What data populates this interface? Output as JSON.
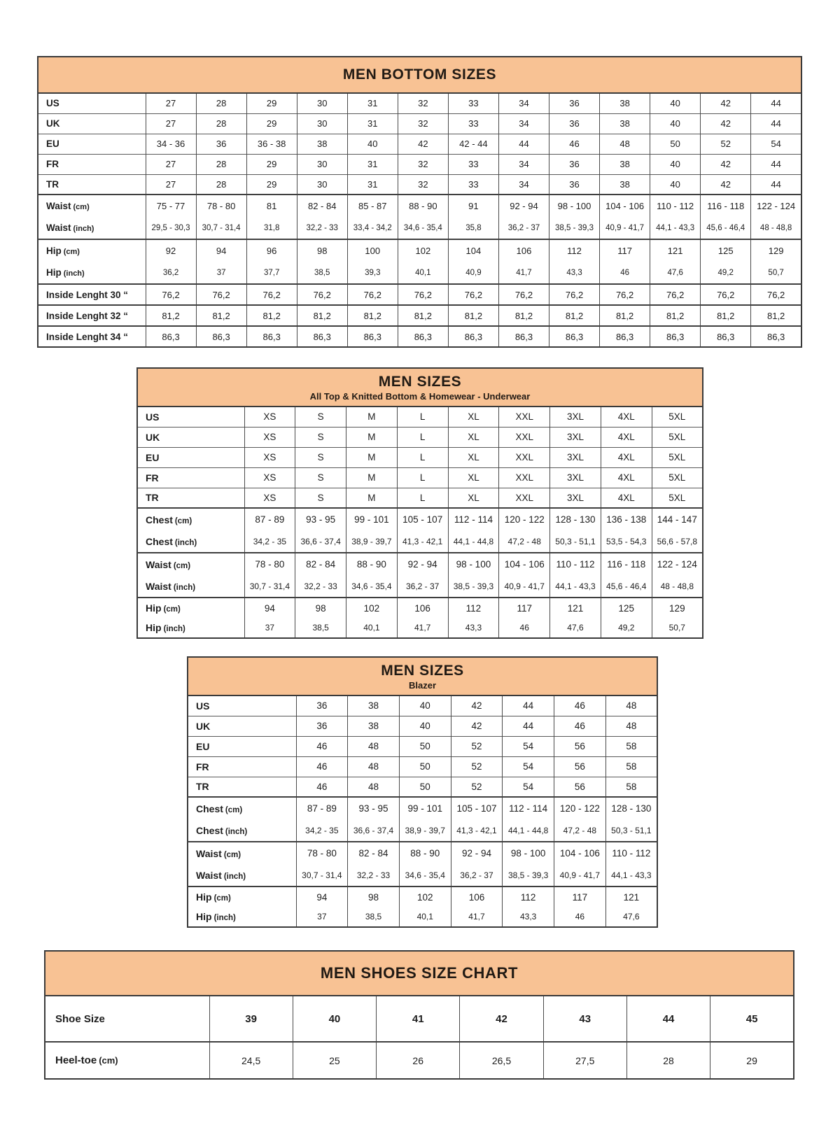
{
  "colors": {
    "table_header_bg": "#F8C294",
    "border_dark": "#3a3a3a",
    "border_thin": "#585858",
    "text": "#1d1d1d"
  },
  "tables": [
    {
      "name": "men-bottom-sizes-table",
      "title": "MEN BOTTOM SIZES",
      "subtitle": "",
      "groups": [
        {
          "merged": false,
          "rows": [
            {
              "kind": "size",
              "label": "US",
              "unit": "",
              "cells": [
                "27",
                "28",
                "29",
                "30",
                "31",
                "32",
                "33",
                "34",
                "36",
                "38",
                "40",
                "42",
                "44"
              ]
            },
            {
              "kind": "size",
              "label": "UK",
              "unit": "",
              "cells": [
                "27",
                "28",
                "29",
                "30",
                "31",
                "32",
                "33",
                "34",
                "36",
                "38",
                "40",
                "42",
                "44"
              ]
            },
            {
              "kind": "size",
              "label": "EU",
              "unit": "",
              "cells": [
                "34 - 36",
                "36",
                "36 - 38",
                "38",
                "40",
                "42",
                "42 - 44",
                "44",
                "46",
                "48",
                "50",
                "52",
                "54"
              ]
            },
            {
              "kind": "size",
              "label": "FR",
              "unit": "",
              "cells": [
                "27",
                "28",
                "29",
                "30",
                "31",
                "32",
                "33",
                "34",
                "36",
                "38",
                "40",
                "42",
                "44"
              ]
            },
            {
              "kind": "size",
              "label": "TR",
              "unit": "",
              "cells": [
                "27",
                "28",
                "29",
                "30",
                "31",
                "32",
                "33",
                "34",
                "36",
                "38",
                "40",
                "42",
                "44"
              ]
            }
          ]
        },
        {
          "merged": true,
          "rows": [
            {
              "kind": "cm",
              "label": "Waist",
              "unit": "(cm)",
              "cells": [
                "75 - 77",
                "78 - 80",
                "81",
                "82 - 84",
                "85 - 87",
                "88 - 90",
                "91",
                "92 - 94",
                "98 - 100",
                "104 - 106",
                "110 - 112",
                "116 - 118",
                "122 - 124"
              ]
            },
            {
              "kind": "inch",
              "label": "Waist",
              "unit": "(inch)",
              "cells": [
                "29,5 - 30,3",
                "30,7 - 31,4",
                "31,8",
                "32,2 - 33",
                "33,4 - 34,2",
                "34,6 - 35,4",
                "35,8",
                "36,2 - 37",
                "38,5 - 39,3",
                "40,9 - 41,7",
                "44,1 - 43,3",
                "45,6 - 46,4",
                "48 - 48,8"
              ]
            }
          ]
        },
        {
          "merged": true,
          "rows": [
            {
              "kind": "cm",
              "label": "Hip",
              "unit": "(cm)",
              "cells": [
                "92",
                "94",
                "96",
                "98",
                "100",
                "102",
                "104",
                "106",
                "112",
                "117",
                "121",
                "125",
                "129"
              ]
            },
            {
              "kind": "inch",
              "label": "Hip",
              "unit": "(inch)",
              "cells": [
                "36,2",
                "37",
                "37,7",
                "38,5",
                "39,3",
                "40,1",
                "40,9",
                "41,7",
                "43,3",
                "46",
                "47,6",
                "49,2",
                "50,7"
              ]
            }
          ]
        },
        {
          "merged": false,
          "rows": [
            {
              "kind": "il",
              "label": "Inside Lenght 30 “",
              "unit": "",
              "cells": [
                "76,2",
                "76,2",
                "76,2",
                "76,2",
                "76,2",
                "76,2",
                "76,2",
                "76,2",
                "76,2",
                "76,2",
                "76,2",
                "76,2",
                "76,2"
              ]
            }
          ]
        },
        {
          "merged": false,
          "rows": [
            {
              "kind": "il",
              "label": "Inside Lenght 32 “",
              "unit": "",
              "cells": [
                "81,2",
                "81,2",
                "81,2",
                "81,2",
                "81,2",
                "81,2",
                "81,2",
                "81,2",
                "81,2",
                "81,2",
                "81,2",
                "81,2",
                "81,2"
              ]
            }
          ]
        },
        {
          "merged": false,
          "rows": [
            {
              "kind": "il",
              "label": "Inside Lenght 34 “",
              "unit": "",
              "cells": [
                "86,3",
                "86,3",
                "86,3",
                "86,3",
                "86,3",
                "86,3",
                "86,3",
                "86,3",
                "86,3",
                "86,3",
                "86,3",
                "86,3",
                "86,3"
              ]
            }
          ]
        }
      ]
    },
    {
      "name": "men-sizes-top-table",
      "title": "MEN SIZES",
      "subtitle": "All Top & Knitted Bottom & Homewear - Underwear",
      "groups": [
        {
          "merged": false,
          "rows": [
            {
              "kind": "size",
              "label": "US",
              "unit": "",
              "cells": [
                "XS",
                "S",
                "M",
                "L",
                "XL",
                "XXL",
                "3XL",
                "4XL",
                "5XL"
              ]
            },
            {
              "kind": "size",
              "label": "UK",
              "unit": "",
              "cells": [
                "XS",
                "S",
                "M",
                "L",
                "XL",
                "XXL",
                "3XL",
                "4XL",
                "5XL"
              ]
            },
            {
              "kind": "size",
              "label": "EU",
              "unit": "",
              "cells": [
                "XS",
                "S",
                "M",
                "L",
                "XL",
                "XXL",
                "3XL",
                "4XL",
                "5XL"
              ]
            },
            {
              "kind": "size",
              "label": "FR",
              "unit": "",
              "cells": [
                "XS",
                "S",
                "M",
                "L",
                "XL",
                "XXL",
                "3XL",
                "4XL",
                "5XL"
              ]
            },
            {
              "kind": "size",
              "label": "TR",
              "unit": "",
              "cells": [
                "XS",
                "S",
                "M",
                "L",
                "XL",
                "XXL",
                "3XL",
                "4XL",
                "5XL"
              ]
            }
          ]
        },
        {
          "merged": true,
          "rows": [
            {
              "kind": "cm",
              "label": "Chest",
              "unit": "(cm)",
              "cells": [
                "87 - 89",
                "93 - 95",
                "99 - 101",
                "105 - 107",
                "112 - 114",
                "120 - 122",
                "128 - 130",
                "136 - 138",
                "144 - 147"
              ]
            },
            {
              "kind": "inch",
              "label": "Chest",
              "unit": "(inch)",
              "cells": [
                "34,2 - 35",
                "36,6 - 37,4",
                "38,9 - 39,7",
                "41,3 - 42,1",
                "44,1 - 44,8",
                "47,2 - 48",
                "50,3 - 51,1",
                "53,5 - 54,3",
                "56,6 - 57,8"
              ]
            }
          ]
        },
        {
          "merged": true,
          "rows": [
            {
              "kind": "cm",
              "label": "Waist",
              "unit": "(cm)",
              "cells": [
                "78 - 80",
                "82 - 84",
                "88 - 90",
                "92 - 94",
                "98 - 100",
                "104 - 106",
                "110 - 112",
                "116 - 118",
                "122 - 124"
              ]
            },
            {
              "kind": "inch",
              "label": "Waist",
              "unit": "(inch)",
              "cells": [
                "30,7 - 31,4",
                "32,2 - 33",
                "34,6 - 35,4",
                "36,2 - 37",
                "38,5 - 39,3",
                "40,9 - 41,7",
                "44,1 - 43,3",
                "45,6 - 46,4",
                "48 - 48,8"
              ]
            }
          ]
        },
        {
          "merged": true,
          "rows": [
            {
              "kind": "hipcm",
              "label": "Hip",
              "unit": "(cm)",
              "cells": [
                "94",
                "98",
                "102",
                "106",
                "112",
                "117",
                "121",
                "125",
                "129"
              ]
            },
            {
              "kind": "hipinch",
              "label": "Hip",
              "unit": "(inch)",
              "cells": [
                "37",
                "38,5",
                "40,1",
                "41,7",
                "43,3",
                "46",
                "47,6",
                "49,2",
                "50,7"
              ]
            }
          ]
        }
      ]
    },
    {
      "name": "men-sizes-blazer-table",
      "title": "MEN SIZES",
      "subtitle": "Blazer",
      "groups": [
        {
          "merged": false,
          "rows": [
            {
              "kind": "size",
              "label": "US",
              "unit": "",
              "cells": [
                "36",
                "38",
                "40",
                "42",
                "44",
                "46",
                "48"
              ]
            },
            {
              "kind": "size",
              "label": "UK",
              "unit": "",
              "cells": [
                "36",
                "38",
                "40",
                "42",
                "44",
                "46",
                "48"
              ]
            },
            {
              "kind": "size",
              "label": "EU",
              "unit": "",
              "cells": [
                "46",
                "48",
                "50",
                "52",
                "54",
                "56",
                "58"
              ]
            },
            {
              "kind": "size",
              "label": "FR",
              "unit": "",
              "cells": [
                "46",
                "48",
                "50",
                "52",
                "54",
                "56",
                "58"
              ]
            },
            {
              "kind": "size",
              "label": "TR",
              "unit": "",
              "cells": [
                "46",
                "48",
                "50",
                "52",
                "54",
                "56",
                "58"
              ]
            }
          ]
        },
        {
          "merged": true,
          "rows": [
            {
              "kind": "cm",
              "label": "Chest",
              "unit": "(cm)",
              "cells": [
                "87 - 89",
                "93 - 95",
                "99 - 101",
                "105 - 107",
                "112 - 114",
                "120 - 122",
                "128 - 130"
              ]
            },
            {
              "kind": "inch",
              "label": "Chest",
              "unit": "(inch)",
              "cells": [
                "34,2 - 35",
                "36,6 - 37,4",
                "38,9 - 39,7",
                "41,3 - 42,1",
                "44,1 - 44,8",
                "47,2 - 48",
                "50,3 - 51,1"
              ]
            }
          ]
        },
        {
          "merged": true,
          "rows": [
            {
              "kind": "cm",
              "label": "Waist",
              "unit": "(cm)",
              "cells": [
                "78 - 80",
                "82 - 84",
                "88 - 90",
                "92 - 94",
                "98 - 100",
                "104 - 106",
                "110 - 112"
              ]
            },
            {
              "kind": "inch",
              "label": "Waist",
              "unit": "(inch)",
              "cells": [
                "30,7 - 31,4",
                "32,2 - 33",
                "34,6 - 35,4",
                "36,2 - 37",
                "38,5 - 39,3",
                "40,9 - 41,7",
                "44,1 - 43,3"
              ]
            }
          ]
        },
        {
          "merged": true,
          "rows": [
            {
              "kind": "hipcm",
              "label": "Hip",
              "unit": "(cm)",
              "cells": [
                "94",
                "98",
                "102",
                "106",
                "112",
                "117",
                "121"
              ]
            },
            {
              "kind": "hipinch",
              "label": "Hip",
              "unit": "(inch)",
              "cells": [
                "37",
                "38,5",
                "40,1",
                "41,7",
                "43,3",
                "46",
                "47,6"
              ]
            }
          ]
        }
      ]
    },
    {
      "name": "men-shoes-size-chart-table",
      "title": "MEN SHOES SIZE CHART",
      "subtitle": "",
      "groups": [
        {
          "merged": false,
          "rows": [
            {
              "kind": "shoe",
              "label": "Shoe Size",
              "unit": "",
              "cells": [
                "39",
                "40",
                "41",
                "42",
                "43",
                "44",
                "45"
              ]
            }
          ]
        },
        {
          "merged": false,
          "rows": [
            {
              "kind": "heel",
              "label": "Heel-toe",
              "unit": "(cm)",
              "cells": [
                "24,5",
                "25",
                "26",
                "26,5",
                "27,5",
                "28",
                "29"
              ]
            }
          ]
        }
      ]
    }
  ]
}
